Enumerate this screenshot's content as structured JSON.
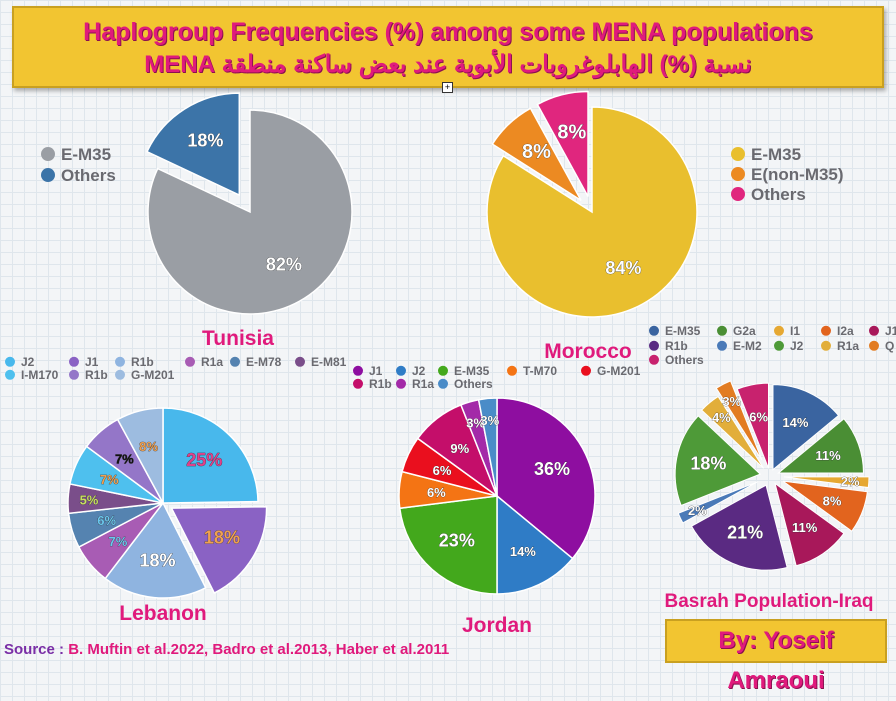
{
  "title": {
    "line1": "Haplogroup Frequencies (%) among  some MENA populations",
    "line2": "نسبة (%) الهابلوغروبات الأبوية عند بعض ساكنة منطقة MENA"
  },
  "source": {
    "label": "Source :",
    "text": "B. Muftin et al.2022, Badro et al.2013, Haber et al.2011"
  },
  "author": "By: Yoseif Amraoui",
  "chart_data": [
    {
      "type": "pie",
      "title": "Tunisia",
      "slices": [
        {
          "name": "E-M35",
          "value": 82,
          "label": "82%",
          "color": "#9a9ea4",
          "label_color": "#ffffff"
        },
        {
          "name": "Others",
          "value": 18,
          "label": "18%",
          "color": "#3c74a8",
          "label_color": "#ffffff"
        }
      ]
    },
    {
      "type": "pie",
      "title": "Morocco",
      "slices": [
        {
          "name": "E-M35",
          "value": 84,
          "label": "84%",
          "color": "#e9bf2e",
          "label_color": "#ffffff"
        },
        {
          "name": "E(non-M35)",
          "value": 8,
          "label": "8%",
          "color": "#ec8a22",
          "label_color": "#ffffff"
        },
        {
          "name": "Others",
          "value": 8,
          "label": "8%",
          "color": "#e0267e",
          "label_color": "#ffffff"
        }
      ]
    },
    {
      "type": "pie",
      "title": "Lebanon",
      "slices": [
        {
          "name": "J2",
          "value": 25,
          "label": "25%",
          "color": "#48b8ec",
          "label_color": "#e0408a"
        },
        {
          "name": "J1",
          "value": 18,
          "label": "18%",
          "color": "#8a62c4",
          "label_color": "#f0a050"
        },
        {
          "name": "R1b",
          "value": 18,
          "label": "18%",
          "color": "#8fb4e0",
          "label_color": "#ffffff"
        },
        {
          "name": "R1a",
          "value": 7,
          "label": "7%",
          "color": "#a85cb4",
          "label_color": "#6ac8f0"
        },
        {
          "name": "E-M78",
          "value": 6,
          "label": "6%",
          "color": "#5583b0",
          "label_color": "#6ac8f0"
        },
        {
          "name": "E-M81",
          "value": 5,
          "label": "5%",
          "color": "#7a4e8a",
          "label_color": "#c8e060"
        },
        {
          "name": "I-M170",
          "value": 7,
          "label": "7%",
          "color": "#4ec0ee",
          "label_color": "#f0a050"
        },
        {
          "name": "R1b",
          "value": 7,
          "label": "7%",
          "color": "#9476c8",
          "label_color": "#111111"
        },
        {
          "name": "G-M201",
          "value": 8,
          "label": "8%",
          "color": "#9dbce0",
          "label_color": "#f0a050"
        }
      ]
    },
    {
      "type": "pie",
      "title": "Jordan",
      "slices": [
        {
          "name": "J1",
          "value": 36,
          "label": "36%",
          "color": "#8e0ea0",
          "label_color": "#ffffff"
        },
        {
          "name": "J2",
          "value": 14,
          "label": "14%",
          "color": "#2f7cc6",
          "label_color": "#ffffff"
        },
        {
          "name": "E-M35",
          "value": 23,
          "label": "23%",
          "color": "#43a81c",
          "label_color": "#ffffff"
        },
        {
          "name": "T-M70",
          "value": 6,
          "label": "6%",
          "color": "#f47414",
          "label_color": "#ffffff"
        },
        {
          "name": "G-M201",
          "value": 6,
          "label": "6%",
          "color": "#ea0f1e",
          "label_color": "#ffffff"
        },
        {
          "name": "R1b",
          "value": 9,
          "label": "9%",
          "color": "#c40e6a",
          "label_color": "#ffffff"
        },
        {
          "name": "R1a",
          "value": 3,
          "label": "3%",
          "color": "#a32aa8",
          "label_color": "#ffffff"
        },
        {
          "name": "Others",
          "value": 3,
          "label": "3%",
          "color": "#4a8cc8",
          "label_color": "#ffffff"
        }
      ]
    },
    {
      "type": "pie",
      "title": "Basrah Population-Iraq",
      "slices": [
        {
          "name": "E-M35",
          "value": 14,
          "label": "14%",
          "color": "#3a64a0",
          "label_color": "#ffffff"
        },
        {
          "name": "G2a",
          "value": 11,
          "label": "11%",
          "color": "#4a8e34",
          "label_color": "#ffffff"
        },
        {
          "name": "I1",
          "value": 2,
          "label": "2%",
          "color": "#e6a832",
          "label_color": "#ffffff"
        },
        {
          "name": "I2a",
          "value": 8,
          "label": "8%",
          "color": "#e2641e",
          "label_color": "#ffffff"
        },
        {
          "name": "J1",
          "value": 11,
          "label": "11%",
          "color": "#a8185a",
          "label_color": "#ffffff"
        },
        {
          "name": "R1b",
          "value": 21,
          "label": "21%",
          "color": "#5a2a82",
          "label_color": "#ffffff"
        },
        {
          "name": "E-M2",
          "value": 2,
          "label": "2%",
          "color": "#4a7ab8",
          "label_color": "#ffffff"
        },
        {
          "name": "J2",
          "value": 18,
          "label": "18%",
          "color": "#4e9a38",
          "label_color": "#ffffff"
        },
        {
          "name": "R1a",
          "value": 4,
          "label": "4%",
          "color": "#e2ae3a",
          "label_color": "#ffffff"
        },
        {
          "name": "Q",
          "value": 3,
          "label": "3%",
          "color": "#e27c22",
          "label_color": "#ffffff"
        },
        {
          "name": "Others",
          "value": 6,
          "label": "6%",
          "color": "#c8226e",
          "label_color": "#ffffff"
        }
      ]
    }
  ]
}
